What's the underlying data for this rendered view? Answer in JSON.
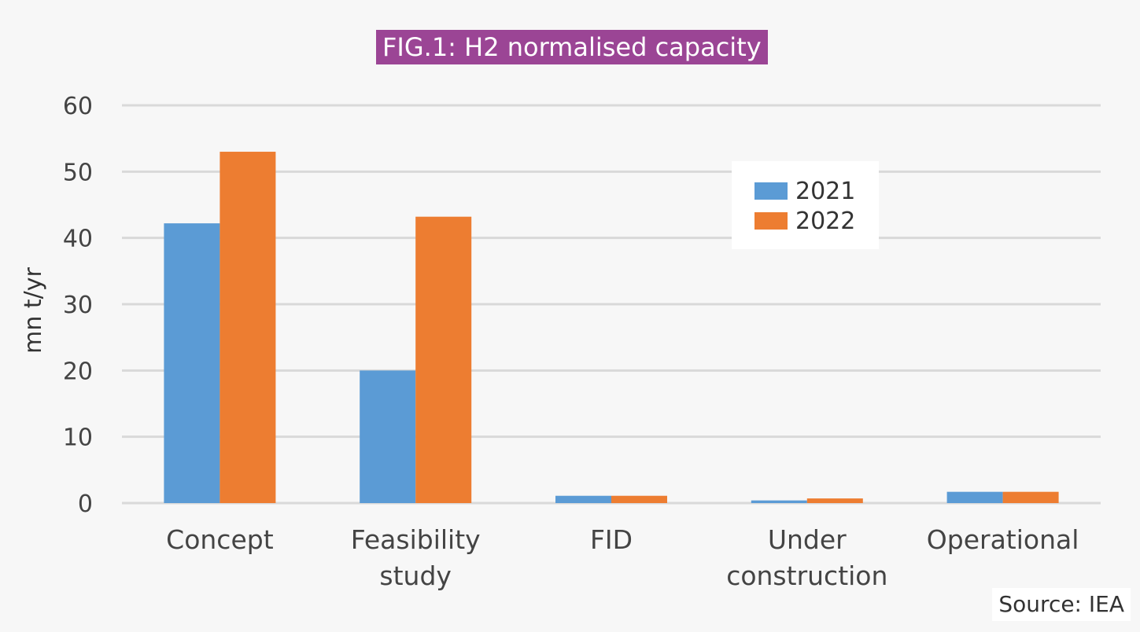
{
  "chart_data": {
    "type": "bar",
    "title": "FIG.1: H2 normalised capacity",
    "xlabel": "",
    "ylabel": "mn t/yr",
    "categories": [
      "Concept",
      "Feasibility study",
      "FID",
      "Under construction",
      "Operational"
    ],
    "category_lines": [
      [
        "Concept"
      ],
      [
        "Feasibility",
        "study"
      ],
      [
        "FID"
      ],
      [
        "Under",
        "construction"
      ],
      [
        "Operational"
      ]
    ],
    "series": [
      {
        "name": "2021",
        "values": [
          42.2,
          20.0,
          1.1,
          0.4,
          1.7
        ]
      },
      {
        "name": "2022",
        "values": [
          53.0,
          43.2,
          1.1,
          0.7,
          1.7
        ]
      }
    ],
    "ylim": [
      0,
      60
    ],
    "yticks": [
      "0",
      "10",
      "20",
      "30",
      "40",
      "50",
      "60"
    ],
    "grid": true,
    "legend_position": "top-right",
    "source": "Source: IEA"
  },
  "colors": {
    "series_2021": "#5b9bd5",
    "series_2022": "#ed7d31",
    "title_bg": "#9b4595",
    "grid": "#d9d9d9"
  }
}
